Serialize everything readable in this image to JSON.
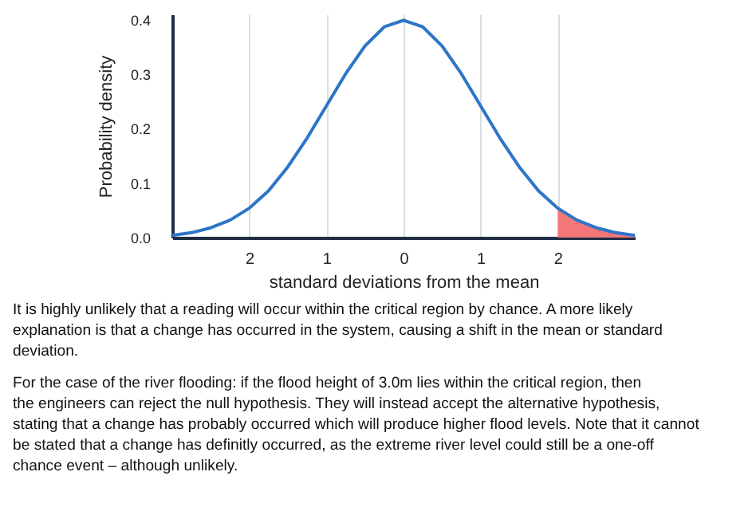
{
  "chart_data": {
    "type": "line",
    "xlabel": "standard deviations from the mean",
    "ylabel": "Probability density",
    "x": [
      -3,
      -2.75,
      -2.5,
      -2.25,
      -2,
      -1.75,
      -1.5,
      -1.25,
      -1,
      -0.75,
      -0.5,
      -0.25,
      0,
      0.25,
      0.5,
      0.75,
      1,
      1.25,
      1.5,
      1.75,
      2,
      2.25,
      2.5,
      2.75,
      3
    ],
    "series": [
      {
        "color": "#2e75c8",
        "values": [
          0.004,
          0.009,
          0.018,
          0.032,
          0.054,
          0.086,
          0.13,
          0.183,
          0.242,
          0.301,
          0.352,
          0.387,
          0.399,
          0.387,
          0.352,
          0.301,
          0.242,
          0.183,
          0.13,
          0.086,
          0.054,
          0.032,
          0.018,
          0.009,
          0.004
        ]
      },
      {
        "type": "area",
        "color": "#f4777a",
        "x": [
          2,
          2.25,
          2.5,
          2.75,
          3
        ],
        "values": [
          0.054,
          0.032,
          0.018,
          0.009,
          0.004
        ]
      }
    ],
    "xlim": [
      -3,
      3
    ],
    "xticks": [
      {
        "value": -2,
        "label": "2"
      },
      {
        "value": -1,
        "label": "1"
      },
      0,
      1,
      2
    ],
    "ylim": [
      0,
      0.41
    ],
    "yticks": [
      {
        "value": 0,
        "label": "0.0"
      },
      0.1,
      0.2,
      0.3,
      0.4
    ],
    "grid": "x",
    "marker": "none",
    "line_style": "solid",
    "annotations": [
      "It is highly unlikely that a reading will occur within the critical region by chance.  A more likely explanation is that a change has occurred in the system, causing a shift in the mean or standard deviation.",
      "For the case of the river flooding:  if the flood height of 3.0m lies within the critical region, then the engineers can reject the null hypothesis.  They will instead accept the alternative hypothesis, stating that a change has probably occurred which will produce higher flood levels.  Note that it cannot be stated that a change has definitly occurred, as the extreme river level could still be a one-off chance event – although unlikely."
    ]
  }
}
